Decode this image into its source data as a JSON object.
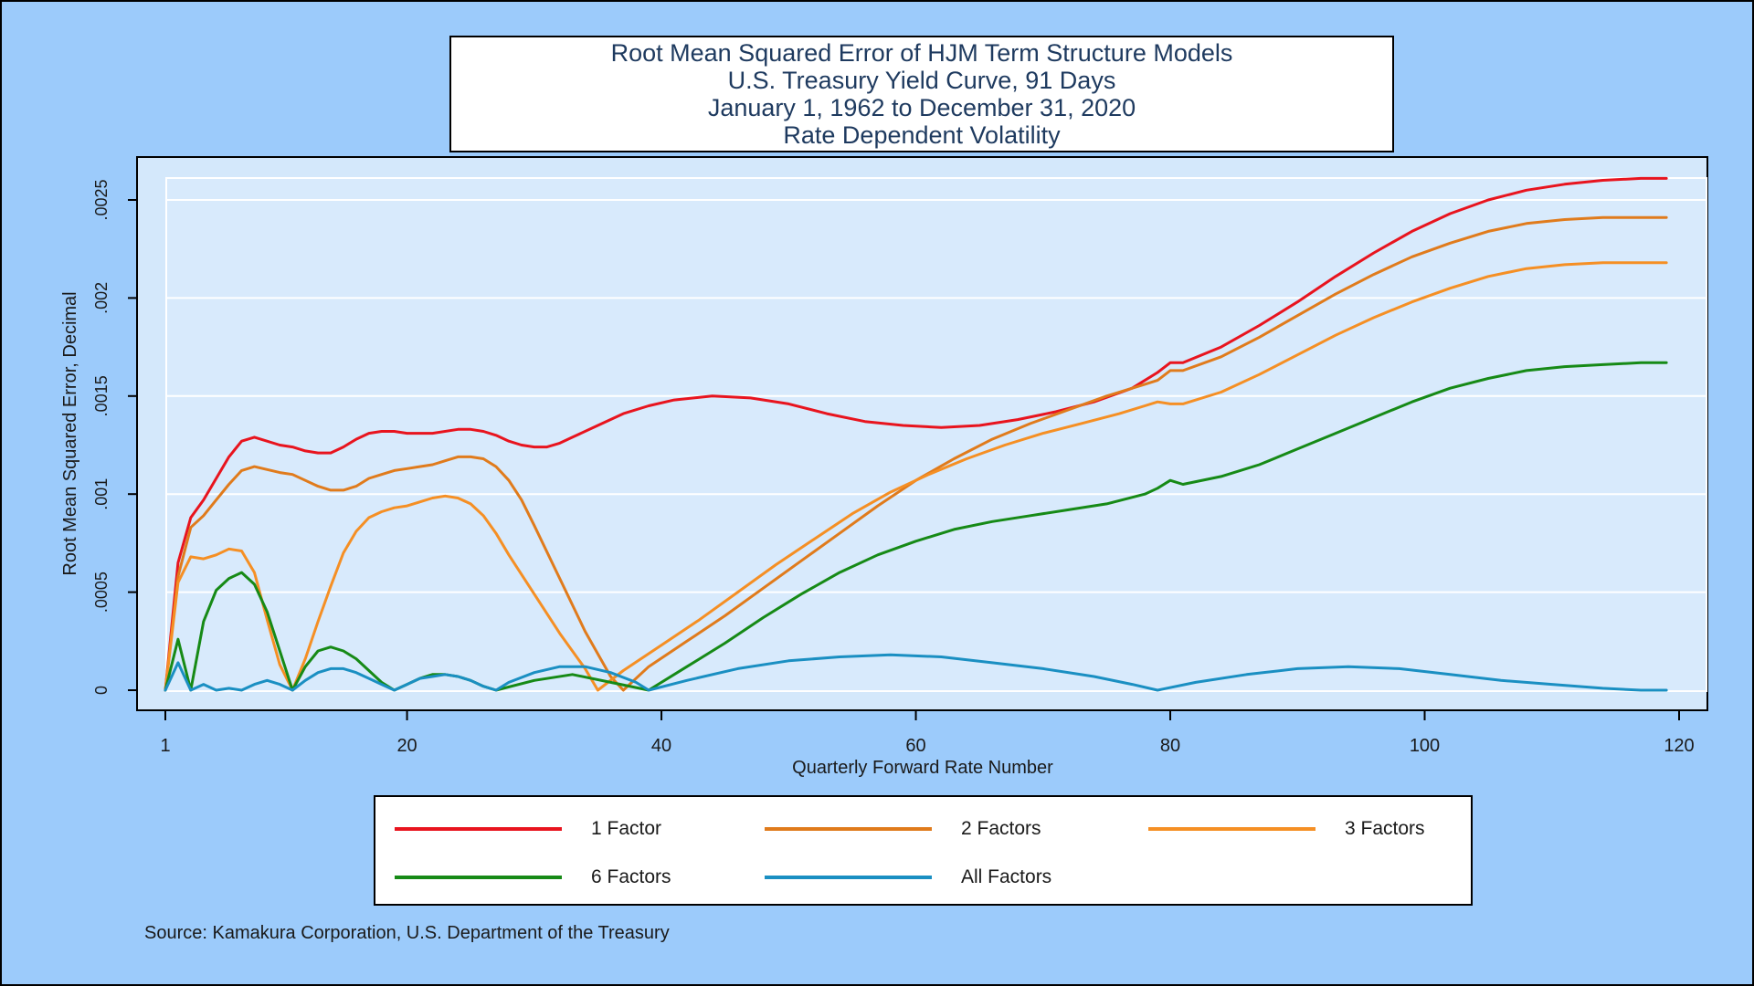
{
  "chart_data": {
    "type": "line",
    "title_lines": [
      "Root Mean Squared Error of HJM Term Structure Models",
      "U.S. Treasury Yield Curve, 91 Days",
      "January 1, 1962 to December 31, 2020",
      "Rate Dependent Volatility"
    ],
    "xlabel": "Quarterly Forward Rate Number",
    "ylabel": "Root Mean Squared Error, Decimal",
    "xlim": [
      1,
      120
    ],
    "ylim": [
      0,
      0.0026
    ],
    "xticks": [
      1,
      20,
      40,
      60,
      80,
      100,
      120
    ],
    "yticks": [
      0,
      0.0005,
      0.001,
      0.0015,
      0.002,
      0.0025
    ],
    "ytick_labels": [
      "0",
      ".0005",
      ".001",
      ".0015",
      ".002",
      ".0025"
    ],
    "grid": true,
    "legend_position": "bottom",
    "series": [
      {
        "name": "1 Factor",
        "color": "#e8141e",
        "points": [
          [
            1,
            0
          ],
          [
            2,
            0.00065
          ],
          [
            3,
            0.00088
          ],
          [
            4,
            0.00097
          ],
          [
            5,
            0.00108
          ],
          [
            6,
            0.00119
          ],
          [
            7,
            0.00127
          ],
          [
            8,
            0.00129
          ],
          [
            10,
            0.00125
          ],
          [
            11,
            0.00124
          ],
          [
            12,
            0.00122
          ],
          [
            13,
            0.00121
          ],
          [
            14,
            0.00121
          ],
          [
            15,
            0.00124
          ],
          [
            16,
            0.00128
          ],
          [
            17,
            0.00131
          ],
          [
            18,
            0.00132
          ],
          [
            19,
            0.00132
          ],
          [
            20,
            0.00131
          ],
          [
            21,
            0.00131
          ],
          [
            22,
            0.00131
          ],
          [
            24,
            0.00133
          ],
          [
            25,
            0.00133
          ],
          [
            26,
            0.00132
          ],
          [
            27,
            0.0013
          ],
          [
            28,
            0.00127
          ],
          [
            29,
            0.00125
          ],
          [
            30,
            0.00124
          ],
          [
            31,
            0.00124
          ],
          [
            32,
            0.00126
          ],
          [
            33,
            0.00129
          ],
          [
            35,
            0.00135
          ],
          [
            37,
            0.00141
          ],
          [
            39,
            0.00145
          ],
          [
            41,
            0.00148
          ],
          [
            44,
            0.0015
          ],
          [
            47,
            0.00149
          ],
          [
            50,
            0.00146
          ],
          [
            53,
            0.00141
          ],
          [
            56,
            0.00137
          ],
          [
            59,
            0.00135
          ],
          [
            62,
            0.00134
          ],
          [
            65,
            0.00135
          ],
          [
            68,
            0.00138
          ],
          [
            71,
            0.00142
          ],
          [
            74,
            0.00147
          ],
          [
            77,
            0.00154
          ],
          [
            79,
            0.00162
          ],
          [
            80,
            0.00167
          ],
          [
            81,
            0.00167
          ],
          [
            84,
            0.00175
          ],
          [
            87,
            0.00186
          ],
          [
            90,
            0.00198
          ],
          [
            93,
            0.00211
          ],
          [
            96,
            0.00223
          ],
          [
            99,
            0.00234
          ],
          [
            102,
            0.00243
          ],
          [
            105,
            0.0025
          ],
          [
            108,
            0.00255
          ],
          [
            111,
            0.00258
          ],
          [
            114,
            0.0026
          ],
          [
            117,
            0.00261
          ],
          [
            119,
            0.00261
          ]
        ]
      },
      {
        "name": "2 Factors",
        "color": "#e07b1c",
        "points": [
          [
            1,
            0
          ],
          [
            2,
            0.00058
          ],
          [
            3,
            0.00083
          ],
          [
            4,
            0.00089
          ],
          [
            5,
            0.00097
          ],
          [
            6,
            0.00105
          ],
          [
            7,
            0.00112
          ],
          [
            8,
            0.00114
          ],
          [
            10,
            0.00111
          ],
          [
            11,
            0.0011
          ],
          [
            12,
            0.00107
          ],
          [
            13,
            0.00104
          ],
          [
            14,
            0.00102
          ],
          [
            15,
            0.00102
          ],
          [
            16,
            0.00104
          ],
          [
            17,
            0.00108
          ],
          [
            18,
            0.0011
          ],
          [
            19,
            0.00112
          ],
          [
            20,
            0.00113
          ],
          [
            21,
            0.00114
          ],
          [
            22,
            0.00115
          ],
          [
            23,
            0.00117
          ],
          [
            24,
            0.00119
          ],
          [
            25,
            0.00119
          ],
          [
            26,
            0.00118
          ],
          [
            27,
            0.00114
          ],
          [
            28,
            0.00107
          ],
          [
            29,
            0.00097
          ],
          [
            30,
            0.00084
          ],
          [
            32,
            0.00057
          ],
          [
            34,
            0.0003
          ],
          [
            36,
            7e-05
          ],
          [
            37,
            0
          ],
          [
            39,
            0.00012
          ],
          [
            42,
            0.00025
          ],
          [
            45,
            0.00038
          ],
          [
            48,
            0.00052
          ],
          [
            51,
            0.00066
          ],
          [
            54,
            0.0008
          ],
          [
            57,
            0.00094
          ],
          [
            60,
            0.00107
          ],
          [
            63,
            0.00118
          ],
          [
            66,
            0.00128
          ],
          [
            69,
            0.00136
          ],
          [
            72,
            0.00143
          ],
          [
            75,
            0.0015
          ],
          [
            78,
            0.00156
          ],
          [
            79,
            0.00158
          ],
          [
            80,
            0.00163
          ],
          [
            81,
            0.00163
          ],
          [
            84,
            0.0017
          ],
          [
            87,
            0.0018
          ],
          [
            90,
            0.00191
          ],
          [
            93,
            0.00202
          ],
          [
            96,
            0.00212
          ],
          [
            99,
            0.00221
          ],
          [
            102,
            0.00228
          ],
          [
            105,
            0.00234
          ],
          [
            108,
            0.00238
          ],
          [
            111,
            0.0024
          ],
          [
            114,
            0.00241
          ],
          [
            117,
            0.00241
          ],
          [
            119,
            0.00241
          ]
        ]
      },
      {
        "name": "3 Factors",
        "color": "#f58f24",
        "points": [
          [
            1,
            0
          ],
          [
            2,
            0.00055
          ],
          [
            3,
            0.00068
          ],
          [
            4,
            0.00067
          ],
          [
            5,
            0.00069
          ],
          [
            6,
            0.00072
          ],
          [
            7,
            0.00071
          ],
          [
            8,
            0.0006
          ],
          [
            9,
            0.00036
          ],
          [
            10,
            0.00013
          ],
          [
            11,
            0
          ],
          [
            12,
            0.00016
          ],
          [
            13,
            0.00035
          ],
          [
            14,
            0.00053
          ],
          [
            15,
            0.0007
          ],
          [
            16,
            0.00081
          ],
          [
            17,
            0.00088
          ],
          [
            18,
            0.00091
          ],
          [
            19,
            0.00093
          ],
          [
            20,
            0.00094
          ],
          [
            21,
            0.00096
          ],
          [
            22,
            0.00098
          ],
          [
            23,
            0.00099
          ],
          [
            24,
            0.00098
          ],
          [
            25,
            0.00095
          ],
          [
            26,
            0.00089
          ],
          [
            27,
            0.0008
          ],
          [
            28,
            0.00069
          ],
          [
            30,
            0.00049
          ],
          [
            32,
            0.00029
          ],
          [
            34,
            0.00011
          ],
          [
            35,
            0
          ],
          [
            37,
            0.0001
          ],
          [
            40,
            0.00023
          ],
          [
            43,
            0.00036
          ],
          [
            46,
            0.0005
          ],
          [
            49,
            0.00064
          ],
          [
            52,
            0.00077
          ],
          [
            55,
            0.0009
          ],
          [
            58,
            0.00101
          ],
          [
            61,
            0.0011
          ],
          [
            64,
            0.00118
          ],
          [
            67,
            0.00125
          ],
          [
            70,
            0.00131
          ],
          [
            73,
            0.00136
          ],
          [
            76,
            0.00141
          ],
          [
            78,
            0.00145
          ],
          [
            79,
            0.00147
          ],
          [
            80,
            0.00146
          ],
          [
            81,
            0.00146
          ],
          [
            84,
            0.00152
          ],
          [
            87,
            0.00161
          ],
          [
            90,
            0.00171
          ],
          [
            93,
            0.00181
          ],
          [
            96,
            0.0019
          ],
          [
            99,
            0.00198
          ],
          [
            102,
            0.00205
          ],
          [
            105,
            0.00211
          ],
          [
            108,
            0.00215
          ],
          [
            111,
            0.00217
          ],
          [
            114,
            0.00218
          ],
          [
            117,
            0.00218
          ],
          [
            119,
            0.00218
          ]
        ]
      },
      {
        "name": "6 Factors",
        "color": "#168a16",
        "points": [
          [
            1,
            0
          ],
          [
            2,
            0.00026
          ],
          [
            3,
            0
          ],
          [
            4,
            0.00035
          ],
          [
            5,
            0.00051
          ],
          [
            6,
            0.00057
          ],
          [
            7,
            0.0006
          ],
          [
            8,
            0.00054
          ],
          [
            9,
            0.0004
          ],
          [
            10,
            0.0002
          ],
          [
            11,
            0
          ],
          [
            12,
            0.00012
          ],
          [
            13,
            0.0002
          ],
          [
            14,
            0.00022
          ],
          [
            15,
            0.0002
          ],
          [
            16,
            0.00016
          ],
          [
            17,
            0.0001
          ],
          [
            18,
            4e-05
          ],
          [
            19,
            0
          ],
          [
            20,
            3e-05
          ],
          [
            21,
            6e-05
          ],
          [
            22,
            8e-05
          ],
          [
            23,
            8e-05
          ],
          [
            24,
            7e-05
          ],
          [
            25,
            5e-05
          ],
          [
            26,
            2e-05
          ],
          [
            27,
            0
          ],
          [
            30,
            5e-05
          ],
          [
            33,
            8e-05
          ],
          [
            36,
            4e-05
          ],
          [
            39,
            0
          ],
          [
            42,
            0.00012
          ],
          [
            45,
            0.00024
          ],
          [
            48,
            0.00037
          ],
          [
            51,
            0.00049
          ],
          [
            54,
            0.0006
          ],
          [
            57,
            0.00069
          ],
          [
            60,
            0.00076
          ],
          [
            63,
            0.00082
          ],
          [
            66,
            0.00086
          ],
          [
            69,
            0.00089
          ],
          [
            72,
            0.00092
          ],
          [
            75,
            0.00095
          ],
          [
            78,
            0.001
          ],
          [
            79,
            0.00103
          ],
          [
            80,
            0.00107
          ],
          [
            81,
            0.00105
          ],
          [
            84,
            0.00109
          ],
          [
            87,
            0.00115
          ],
          [
            90,
            0.00123
          ],
          [
            93,
            0.00131
          ],
          [
            96,
            0.00139
          ],
          [
            99,
            0.00147
          ],
          [
            102,
            0.00154
          ],
          [
            105,
            0.00159
          ],
          [
            108,
            0.00163
          ],
          [
            111,
            0.00165
          ],
          [
            114,
            0.00166
          ],
          [
            117,
            0.00167
          ],
          [
            119,
            0.00167
          ]
        ]
      },
      {
        "name": "All Factors",
        "color": "#1a8fc2",
        "points": [
          [
            1,
            0
          ],
          [
            2,
            0.00014
          ],
          [
            3,
            0
          ],
          [
            4,
            3e-05
          ],
          [
            5,
            0
          ],
          [
            6,
            1e-05
          ],
          [
            7,
            0
          ],
          [
            8,
            3e-05
          ],
          [
            9,
            5e-05
          ],
          [
            10,
            3e-05
          ],
          [
            11,
            0
          ],
          [
            12,
            5e-05
          ],
          [
            13,
            9e-05
          ],
          [
            14,
            0.00011
          ],
          [
            15,
            0.00011
          ],
          [
            16,
            9e-05
          ],
          [
            17,
            6e-05
          ],
          [
            18,
            3e-05
          ],
          [
            19,
            0
          ],
          [
            20,
            3e-05
          ],
          [
            21,
            6e-05
          ],
          [
            22,
            7e-05
          ],
          [
            23,
            8e-05
          ],
          [
            24,
            7e-05
          ],
          [
            25,
            5e-05
          ],
          [
            26,
            2e-05
          ],
          [
            27,
            0
          ],
          [
            28,
            4e-05
          ],
          [
            30,
            9e-05
          ],
          [
            32,
            0.00012
          ],
          [
            34,
            0.00012
          ],
          [
            36,
            9e-05
          ],
          [
            38,
            4e-05
          ],
          [
            39,
            0
          ],
          [
            42,
            5e-05
          ],
          [
            46,
            0.00011
          ],
          [
            50,
            0.00015
          ],
          [
            54,
            0.00017
          ],
          [
            58,
            0.00018
          ],
          [
            62,
            0.00017
          ],
          [
            66,
            0.00014
          ],
          [
            70,
            0.00011
          ],
          [
            74,
            7e-05
          ],
          [
            77,
            3e-05
          ],
          [
            79,
            0
          ],
          [
            82,
            4e-05
          ],
          [
            86,
            8e-05
          ],
          [
            90,
            0.00011
          ],
          [
            94,
            0.00012
          ],
          [
            98,
            0.00011
          ],
          [
            102,
            8e-05
          ],
          [
            106,
            5e-05
          ],
          [
            110,
            3e-05
          ],
          [
            114,
            1e-05
          ],
          [
            117,
            0
          ],
          [
            119,
            0
          ]
        ]
      }
    ]
  },
  "source": "Source: Kamakura Corporation, U.S. Department of the Treasury"
}
